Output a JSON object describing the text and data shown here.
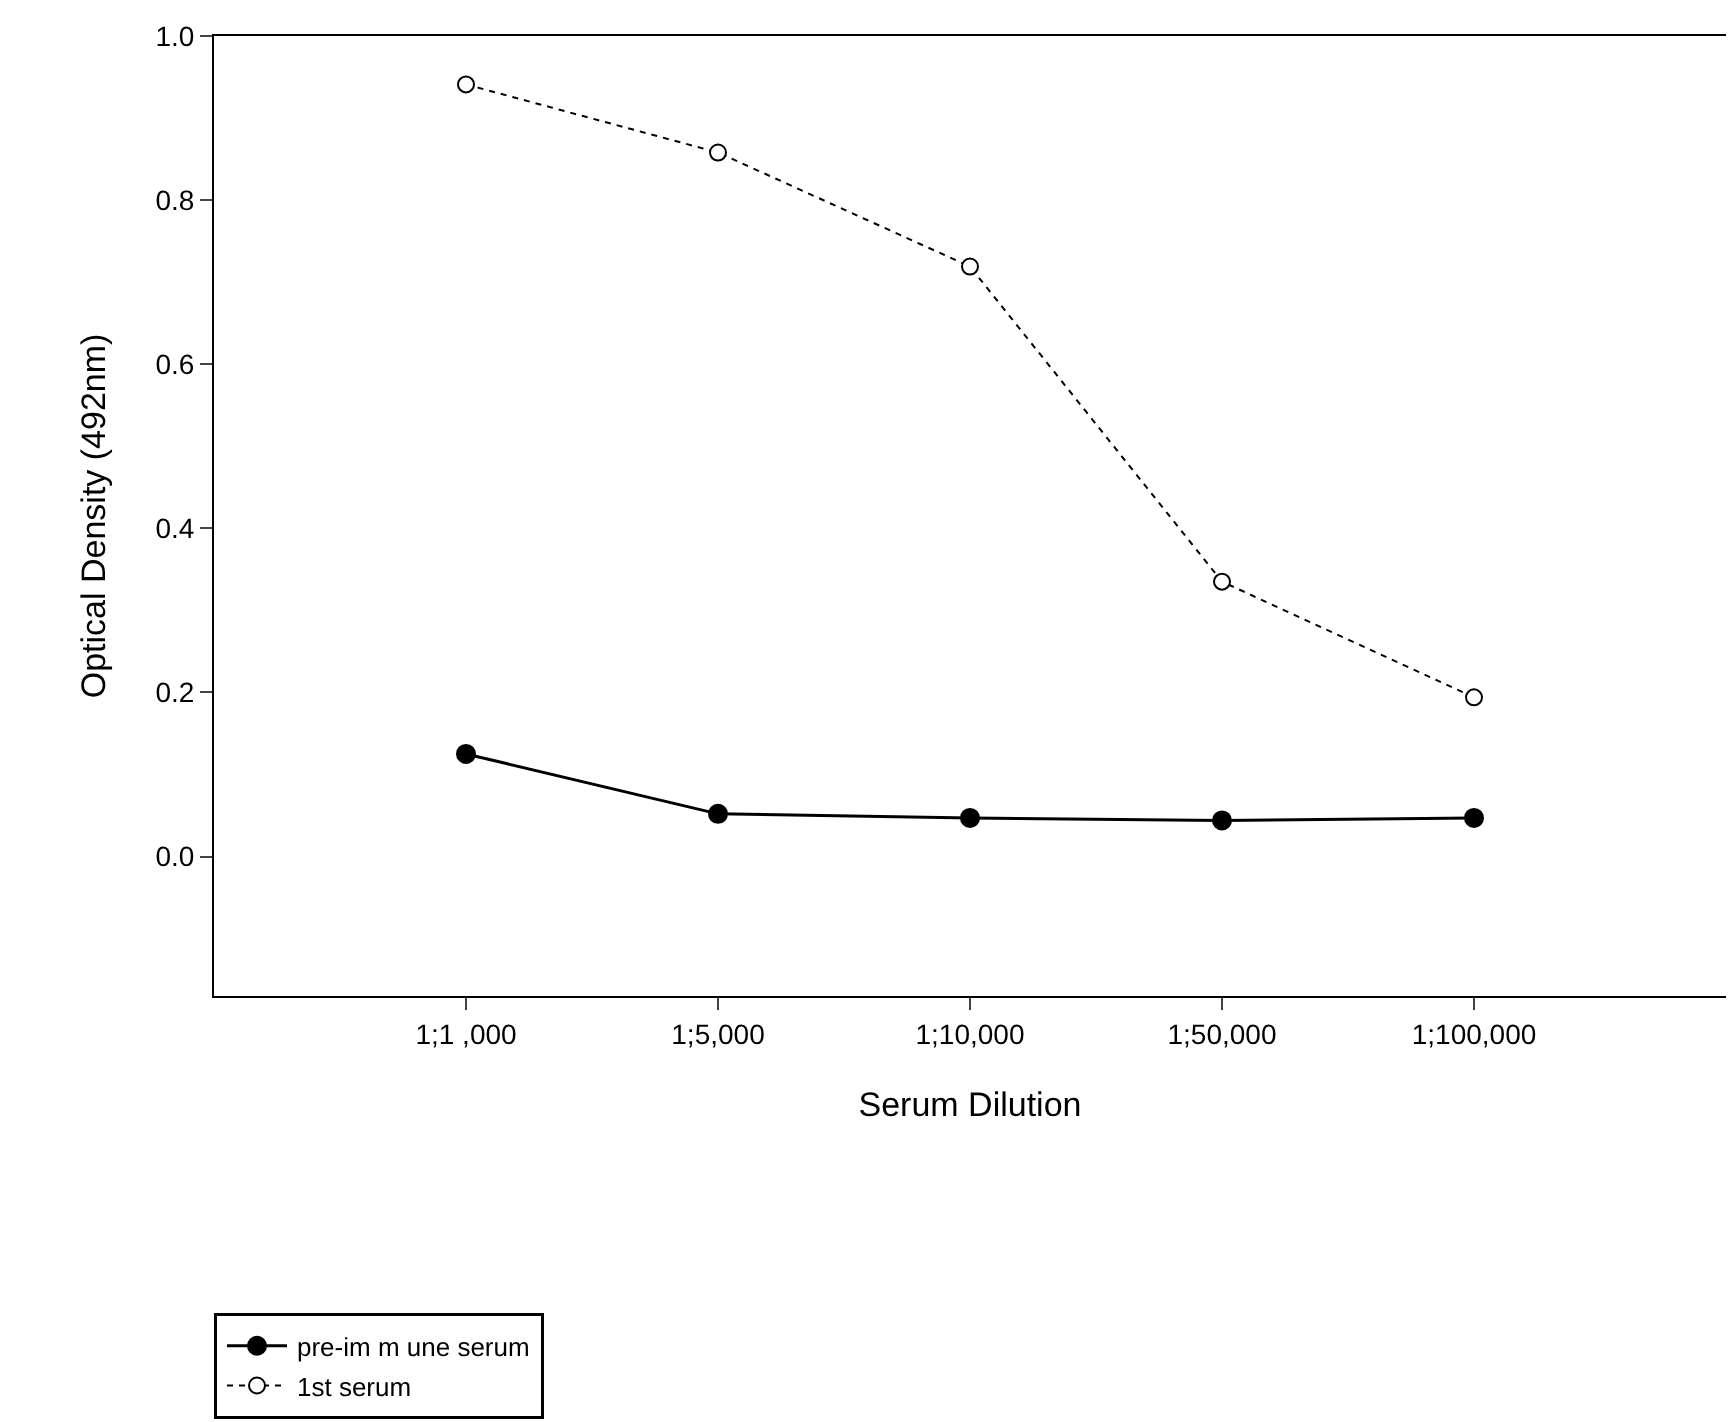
{
  "chart_data": {
    "type": "line",
    "xlabel": "Serum Dilution",
    "ylabel": "Optical Density (492nm)",
    "categories": [
      "1;1 ,000",
      "1;5,000",
      "1;10,000",
      "1;50,000",
      "1;100,000"
    ],
    "series": [
      {
        "name": "pre-im m une serum",
        "color": "#000000",
        "values": [
          0.125,
          0.052,
          0.047,
          0.044,
          0.047
        ],
        "marker": "circle",
        "line_style": "solid"
      },
      {
        "name": "1st serum",
        "color": "#000000",
        "values": [
          0.941,
          0.858,
          0.719,
          0.335,
          0.194
        ],
        "marker": "circle",
        "line_style": "dotted"
      }
    ],
    "ylim": [
      -0.17,
      1.0
    ],
    "yticks": [
      {
        "value": 0,
        "label": "0.0"
      },
      0.2,
      0.4,
      0.6,
      0.8,
      {
        "value": 1,
        "label": "1.0"
      }
    ],
    "grid": false,
    "legend": "bottom left"
  }
}
